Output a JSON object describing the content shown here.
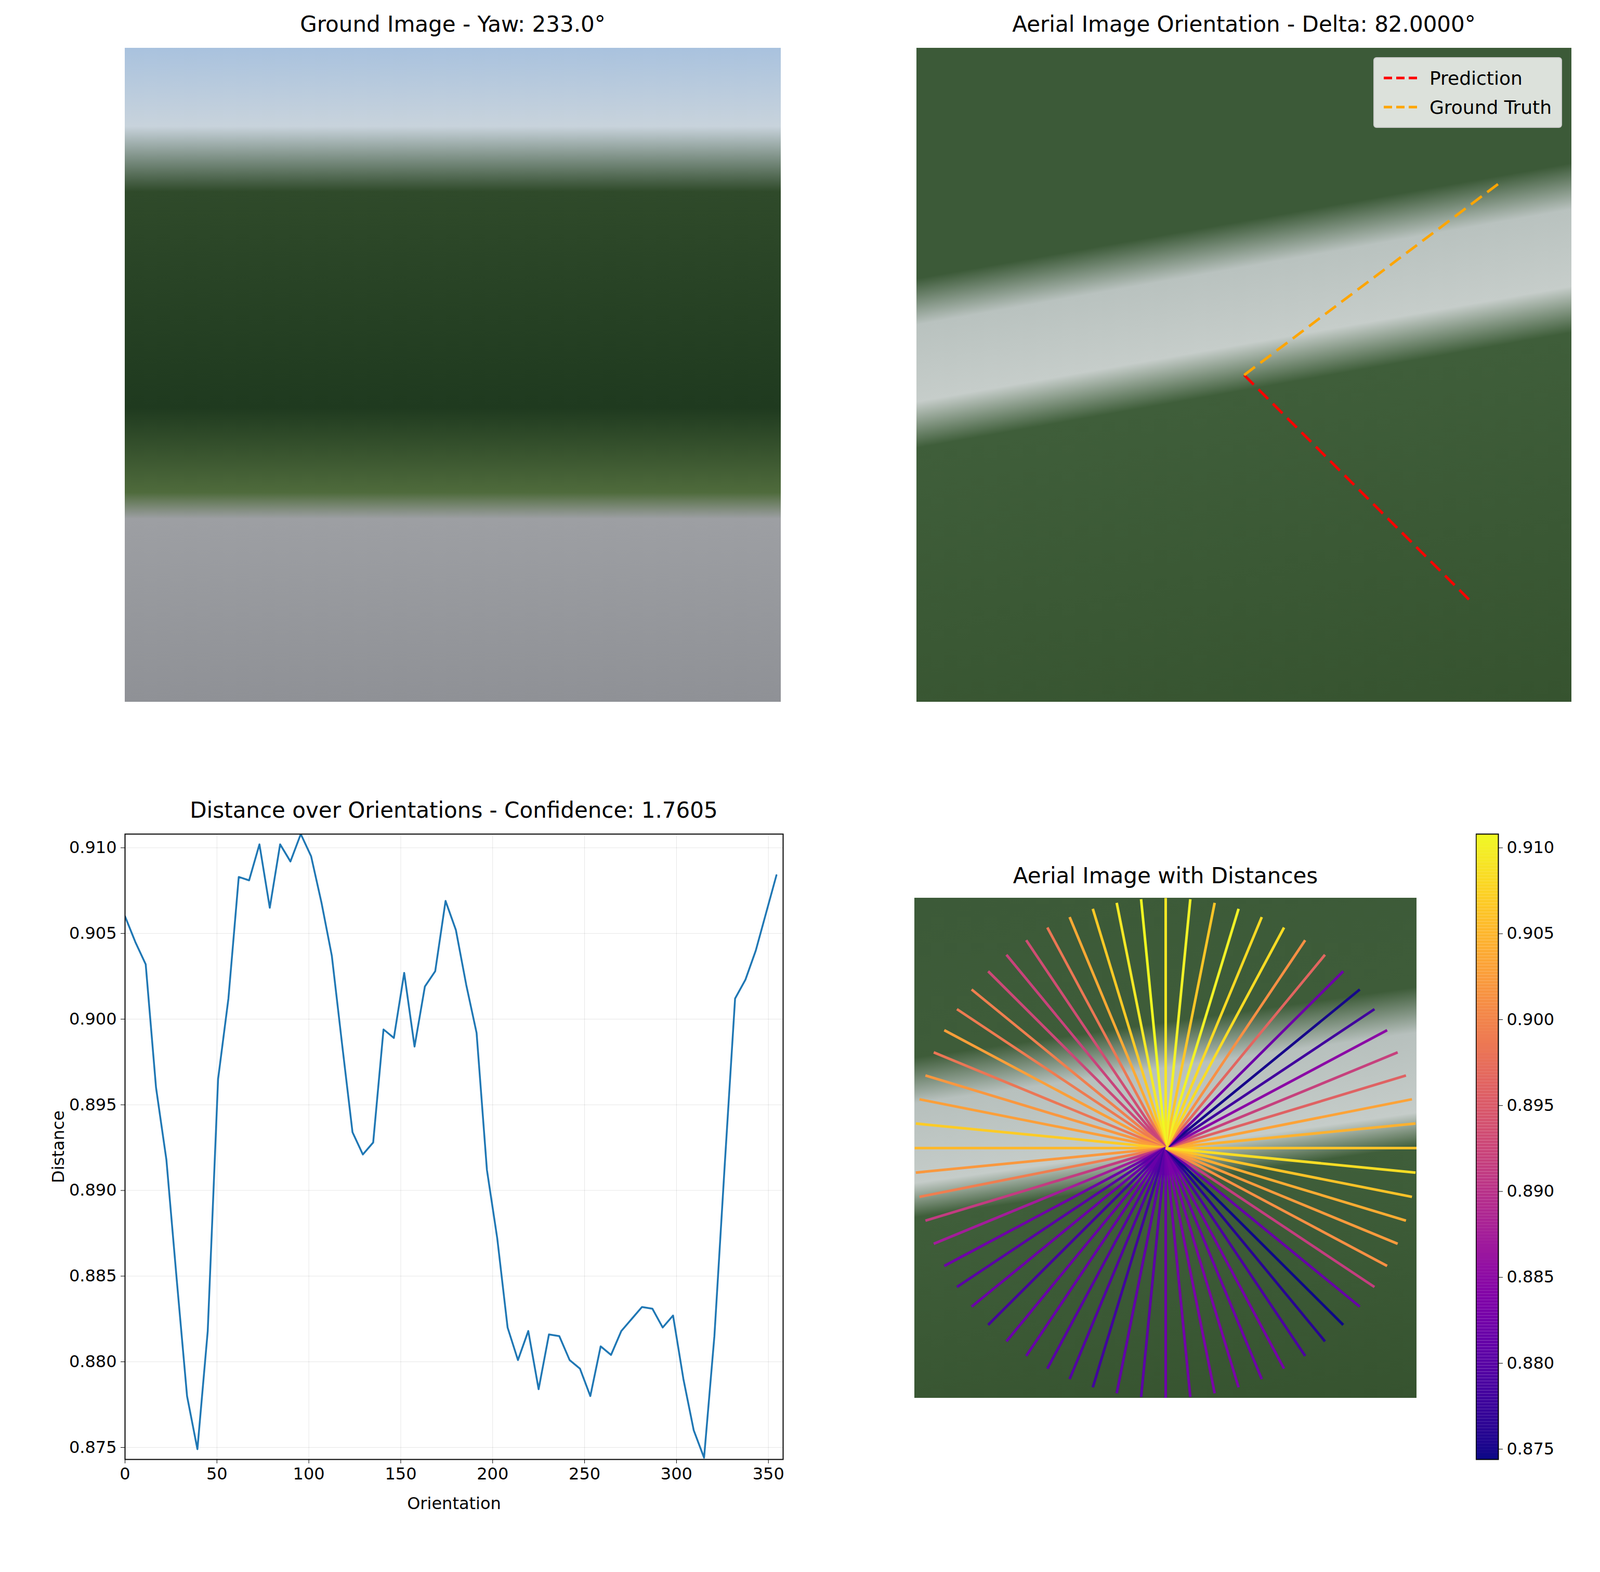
{
  "chart_data": [
    {
      "type": "image",
      "title": "Ground Image - Yaw: 233.0°"
    },
    {
      "type": "orientation",
      "title": "Aerial Image Orientation - Delta: 82.0000°",
      "legend": "upper right",
      "series": [
        {
          "name": "Prediction",
          "color": "#ff0000",
          "line_style": "dashed",
          "values": [
            315
          ]
        },
        {
          "name": "Ground Truth",
          "color": "#ffa500",
          "line_style": "dashed",
          "values": [
            37
          ]
        }
      ]
    },
    {
      "type": "line",
      "title": "Distance over Orientations - Confidence: 1.7605",
      "x_label": "Orientation",
      "y_label": "Distance",
      "color": "#1f77b4",
      "grid": true,
      "x": [
        0,
        5.625,
        11.25,
        16.875,
        22.5,
        28.125,
        33.75,
        39.375,
        45,
        50.625,
        56.25,
        61.875,
        67.5,
        73.125,
        78.75,
        84.375,
        90,
        95.625,
        101.25,
        106.875,
        112.5,
        118.125,
        123.75,
        129.375,
        135,
        140.625,
        146.25,
        151.875,
        157.5,
        163.125,
        168.75,
        174.375,
        180,
        185.625,
        191.25,
        196.875,
        202.5,
        208.125,
        213.75,
        219.375,
        225,
        230.625,
        236.25,
        241.875,
        247.5,
        253.125,
        258.75,
        264.375,
        270,
        275.625,
        281.25,
        286.875,
        292.5,
        298.125,
        303.75,
        309.375,
        315,
        320.625,
        326.25,
        331.875,
        337.5,
        343.125,
        348.75,
        354.375
      ],
      "values": [
        0.906,
        0.9045,
        0.9032,
        0.896,
        0.8918,
        0.8848,
        0.878,
        0.8749,
        0.8818,
        0.8965,
        0.9012,
        0.9083,
        0.9081,
        0.9102,
        0.9065,
        0.9102,
        0.9092,
        0.9108,
        0.9095,
        0.9068,
        0.9037,
        0.8985,
        0.8934,
        0.8921,
        0.8928,
        0.8994,
        0.8989,
        0.9027,
        0.8984,
        0.9019,
        0.9028,
        0.9069,
        0.9052,
        0.902,
        0.8992,
        0.8912,
        0.8872,
        0.882,
        0.8801,
        0.8818,
        0.8784,
        0.8816,
        0.8815,
        0.8801,
        0.8796,
        0.878,
        0.8809,
        0.8804,
        0.8818,
        0.8825,
        0.8832,
        0.8831,
        0.882,
        0.8827,
        0.879,
        0.876,
        0.8744,
        0.8815,
        0.8915,
        0.9012,
        0.9023,
        0.904,
        0.9062,
        0.9084
      ],
      "xlim": [
        0,
        358
      ],
      "xticks": [
        0,
        50,
        100,
        150,
        200,
        250,
        300,
        350
      ],
      "ylim": [
        0.8743,
        0.9108
      ],
      "yticks": [
        0.875,
        {
          "value": 0.88,
          "label": "0.880"
        },
        0.885,
        {
          "value": 0.89,
          "label": "0.890"
        },
        0.895,
        {
          "value": 0.9,
          "label": "0.900"
        },
        0.905,
        {
          "value": 0.91,
          "label": "0.910"
        }
      ]
    },
    {
      "type": "radial",
      "title": "Aerial Image with Distances",
      "x": [
        0,
        5.625,
        11.25,
        16.875,
        22.5,
        28.125,
        33.75,
        39.375,
        45,
        50.625,
        56.25,
        61.875,
        67.5,
        73.125,
        78.75,
        84.375,
        90,
        95.625,
        101.25,
        106.875,
        112.5,
        118.125,
        123.75,
        129.375,
        135,
        140.625,
        146.25,
        151.875,
        157.5,
        163.125,
        168.75,
        174.375,
        180,
        185.625,
        191.25,
        196.875,
        202.5,
        208.125,
        213.75,
        219.375,
        225,
        230.625,
        236.25,
        241.875,
        247.5,
        253.125,
        258.75,
        264.375,
        270,
        275.625,
        281.25,
        286.875,
        292.5,
        298.125,
        303.75,
        309.375,
        315,
        320.625,
        326.25,
        331.875,
        337.5,
        343.125,
        348.75,
        354.375
      ],
      "values": [
        0.906,
        0.9045,
        0.9032,
        0.896,
        0.8918,
        0.8848,
        0.878,
        0.8749,
        0.8818,
        0.8965,
        0.9012,
        0.9083,
        0.9081,
        0.9102,
        0.9065,
        0.9102,
        0.9092,
        0.9108,
        0.9095,
        0.9068,
        0.9037,
        0.8985,
        0.8934,
        0.8921,
        0.8928,
        0.8994,
        0.8989,
        0.9027,
        0.8984,
        0.9019,
        0.9028,
        0.9069,
        0.9052,
        0.902,
        0.8992,
        0.8912,
        0.8872,
        0.882,
        0.8801,
        0.8818,
        0.8784,
        0.8816,
        0.8815,
        0.8801,
        0.8796,
        0.878,
        0.8809,
        0.8804,
        0.8818,
        0.8825,
        0.8832,
        0.8831,
        0.882,
        0.8827,
        0.879,
        0.876,
        0.8744,
        0.8815,
        0.8915,
        0.9012,
        0.9023,
        0.904,
        0.9062,
        0.9084
      ],
      "colorbar": {
        "range": [
          0.8744,
          0.9108
        ],
        "ticks": [
          0.875,
          {
            "value": 0.88,
            "label": "0.880"
          },
          0.885,
          {
            "value": 0.89,
            "label": "0.890"
          },
          0.895,
          {
            "value": 0.9,
            "label": "0.900"
          },
          0.905,
          {
            "value": 0.91,
            "label": "0.910"
          }
        ]
      }
    }
  ]
}
